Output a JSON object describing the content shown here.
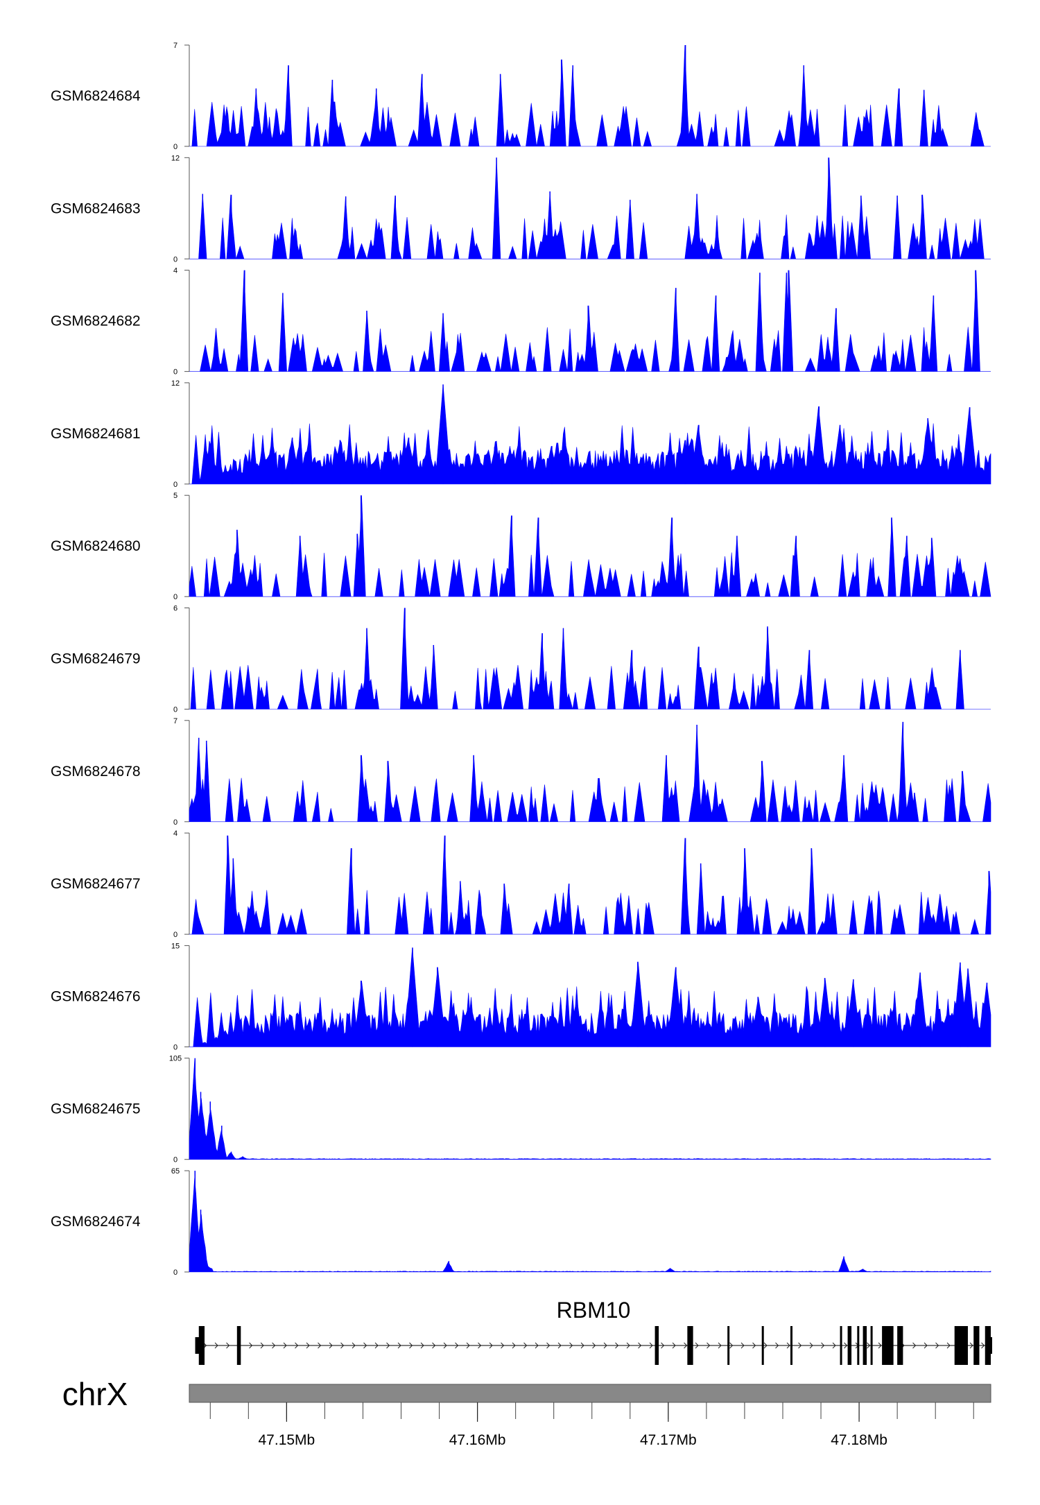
{
  "chart_data": {
    "type": "area",
    "genome_region": {
      "chromosome": "chrX",
      "start_mb": 47.1449,
      "end_mb": 47.1869
    },
    "tracks": [
      {
        "name": "GSM6824684",
        "ymax": 7,
        "ymin": 0,
        "color": "#0000ff",
        "profile": "sparse",
        "peaks": [
          [
            47.1484,
            4
          ],
          [
            47.1501,
            5.6
          ],
          [
            47.1524,
            4.6
          ],
          [
            47.1547,
            4
          ],
          [
            47.1571,
            5
          ],
          [
            47.1612,
            5
          ],
          [
            47.1644,
            6
          ],
          [
            47.165,
            5.6
          ],
          [
            47.1709,
            7
          ],
          [
            47.1771,
            5.6
          ],
          [
            47.1821,
            4
          ],
          [
            47.1834,
            3.9
          ]
        ]
      },
      {
        "name": "GSM6824683",
        "ymax": 12,
        "ymin": 0,
        "color": "#0000ff",
        "profile": "sparse",
        "peaks": [
          [
            47.1456,
            7.7
          ],
          [
            47.1471,
            7.6
          ],
          [
            47.1531,
            7.4
          ],
          [
            47.1557,
            7.5
          ],
          [
            47.161,
            12
          ],
          [
            47.1638,
            8
          ],
          [
            47.168,
            7
          ],
          [
            47.1715,
            7.7
          ],
          [
            47.1784,
            12
          ],
          [
            47.1801,
            7.5
          ],
          [
            47.182,
            7.5
          ],
          [
            47.1833,
            7.6
          ]
        ]
      },
      {
        "name": "GSM6824682",
        "ymax": 4,
        "ymin": 0,
        "color": "#0000ff",
        "profile": "sparse",
        "peaks": [
          [
            47.1478,
            3.1
          ],
          [
            47.1478,
            4
          ],
          [
            47.1498,
            3.1
          ],
          [
            47.1542,
            2.4
          ],
          [
            47.1582,
            2.3
          ],
          [
            47.1658,
            2.6
          ],
          [
            47.1704,
            3.3
          ],
          [
            47.1725,
            3
          ],
          [
            47.1748,
            3.9
          ],
          [
            47.1762,
            3.9
          ],
          [
            47.1763,
            4
          ],
          [
            47.1788,
            2.5
          ],
          [
            47.1839,
            3
          ],
          [
            47.1861,
            4
          ]
        ]
      },
      {
        "name": "GSM6824681",
        "ymax": 12,
        "ymin": 0,
        "color": "#0000ff",
        "profile": "dense",
        "peaks": [
          [
            47.1503,
            5.5
          ],
          [
            47.1528,
            5.2
          ],
          [
            47.1564,
            5.5
          ],
          [
            47.1582,
            11.8
          ],
          [
            47.1609,
            4.4
          ],
          [
            47.1639,
            4.5
          ],
          [
            47.1709,
            5.2
          ],
          [
            47.1716,
            7
          ],
          [
            47.1779,
            9.2
          ],
          [
            47.179,
            7
          ],
          [
            47.1836,
            7.8
          ],
          [
            47.1858,
            9.1
          ]
        ]
      },
      {
        "name": "GSM6824680",
        "ymax": 5,
        "ymin": 0,
        "color": "#0000ff",
        "profile": "sparse",
        "peaks": [
          [
            47.1474,
            3.3
          ],
          [
            47.1507,
            3
          ],
          [
            47.1537,
            3.1
          ],
          [
            47.1539,
            5
          ],
          [
            47.1618,
            4
          ],
          [
            47.1632,
            3.9
          ],
          [
            47.1702,
            3.9
          ],
          [
            47.1736,
            3
          ],
          [
            47.1767,
            3
          ],
          [
            47.1817,
            3.9
          ],
          [
            47.1825,
            3
          ],
          [
            47.1838,
            2.9
          ]
        ]
      },
      {
        "name": "GSM6824679",
        "ymax": 6,
        "ymin": 0,
        "color": "#0000ff",
        "profile": "sparse",
        "peaks": [
          [
            47.1542,
            3.7
          ],
          [
            47.1542,
            4.8
          ],
          [
            47.1562,
            6
          ],
          [
            47.1577,
            3.8
          ],
          [
            47.1634,
            4.5
          ],
          [
            47.1645,
            4.8
          ],
          [
            47.1681,
            3.5
          ],
          [
            47.1716,
            3.7
          ],
          [
            47.1752,
            4.9
          ],
          [
            47.1752,
            4.8
          ],
          [
            47.1774,
            3.5
          ],
          [
            47.1853,
            3.5
          ]
        ]
      },
      {
        "name": "GSM6824678",
        "ymax": 7,
        "ymin": 0,
        "color": "#0000ff",
        "profile": "sparse",
        "peaks": [
          [
            47.1454,
            5.8
          ],
          [
            47.1458,
            5.6
          ],
          [
            47.1539,
            4.6
          ],
          [
            47.1553,
            4.2
          ],
          [
            47.1598,
            4.6
          ],
          [
            47.1699,
            4.6
          ],
          [
            47.1715,
            6.7
          ],
          [
            47.1749,
            4.2
          ],
          [
            47.1792,
            4.6
          ],
          [
            47.1823,
            6.9
          ],
          [
            47.1829,
            2
          ],
          [
            47.1854,
            3.5
          ]
        ]
      },
      {
        "name": "GSM6824677",
        "ymax": 4,
        "ymin": 0,
        "color": "#0000ff",
        "profile": "sparse",
        "peaks": [
          [
            47.1469,
            3.9
          ],
          [
            47.1472,
            3
          ],
          [
            47.1534,
            3.4
          ],
          [
            47.1583,
            3.9
          ],
          [
            47.1591,
            2.1
          ],
          [
            47.1614,
            2
          ],
          [
            47.1648,
            2
          ],
          [
            47.1709,
            3.8
          ],
          [
            47.1717,
            2.8
          ],
          [
            47.174,
            3.4
          ],
          [
            47.1775,
            3.4
          ],
          [
            47.1868,
            2.5
          ]
        ]
      },
      {
        "name": "GSM6824676",
        "ymax": 15,
        "ymin": 0,
        "color": "#0000ff",
        "profile": "dense",
        "peaks": [
          [
            47.1539,
            9.8
          ],
          [
            47.1566,
            14.7
          ],
          [
            47.1579,
            11.8
          ],
          [
            47.1684,
            12.6
          ],
          [
            47.1704,
            11.8
          ],
          [
            47.1747,
            7.4
          ],
          [
            47.1782,
            10.2
          ],
          [
            47.1797,
            10
          ],
          [
            47.1832,
            11
          ],
          [
            47.1853,
            12.5
          ],
          [
            47.1857,
            11.6
          ],
          [
            47.1867,
            9.5
          ]
        ]
      },
      {
        "name": "GSM6824675",
        "ymax": 105,
        "ymin": 0,
        "color": "#0000ff",
        "profile": "spike",
        "peaks": [
          [
            47.1452,
            105
          ],
          [
            47.1455,
            70
          ],
          [
            47.146,
            60
          ],
          [
            47.1466,
            35
          ],
          [
            47.1471,
            8
          ],
          [
            47.1477,
            3
          ]
        ]
      },
      {
        "name": "GSM6824674",
        "ymax": 65,
        "ymin": 0,
        "color": "#0000ff",
        "profile": "spike",
        "peaks": [
          [
            47.1452,
            65
          ],
          [
            47.1455,
            40
          ],
          [
            47.1585,
            7
          ],
          [
            47.1701,
            2.5
          ],
          [
            47.1792,
            10
          ],
          [
            47.1802,
            2
          ]
        ]
      }
    ],
    "gene": {
      "name": "RBM10",
      "strand": "+",
      "start_mb": 47.1455,
      "end_mb": 47.1869,
      "exons_mb": [
        [
          47.1454,
          47.1457
        ],
        [
          47.1474,
          47.1476
        ],
        [
          47.1693,
          47.1695
        ],
        [
          47.171,
          47.1713
        ],
        [
          47.1731,
          47.1732
        ],
        [
          47.1749,
          47.175
        ],
        [
          47.1764,
          47.1765
        ],
        [
          47.179,
          47.1791
        ],
        [
          47.1794,
          47.1796
        ],
        [
          47.1799,
          47.18
        ],
        [
          47.1802,
          47.1804
        ],
        [
          47.1806,
          47.1807
        ],
        [
          47.1812,
          47.1818
        ],
        [
          47.182,
          47.1823
        ],
        [
          47.185,
          47.1857
        ],
        [
          47.186,
          47.1863
        ],
        [
          47.1866,
          47.1869
        ]
      ]
    },
    "ideogram": {
      "label": "chrX",
      "ticks_mb": [
        47.15,
        47.16,
        47.17,
        47.18
      ],
      "tick_labels": [
        "47.15Mb",
        "47.16Mb",
        "47.17Mb",
        "47.18Mb"
      ],
      "minor_tick_step_mb": 0.002
    }
  }
}
